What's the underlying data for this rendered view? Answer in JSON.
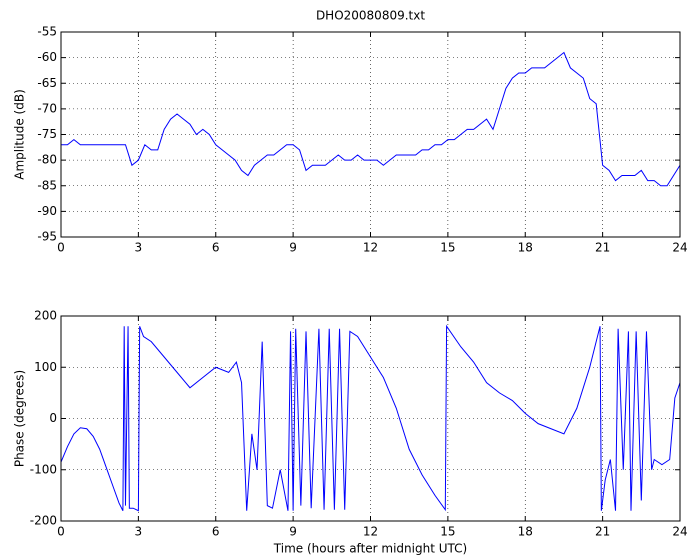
{
  "chart_data": [
    {
      "type": "line",
      "title": "DHO20080809.txt",
      "y_label": "Amplitude (dB)",
      "xlim": [
        0,
        24
      ],
      "xticks": [
        0,
        3,
        6,
        9,
        12,
        15,
        18,
        21,
        24
      ],
      "ylim": [
        -95,
        -55
      ],
      "yticks": [
        -95,
        -90,
        -85,
        -80,
        -75,
        -70,
        -65,
        -60,
        -55
      ],
      "grid": true,
      "series": [
        {
          "color": "#0000ff",
          "x": [
            0,
            0.25,
            0.5,
            0.75,
            1,
            1.25,
            1.5,
            1.75,
            2,
            2.25,
            2.5,
            2.75,
            3,
            3.25,
            3.5,
            3.75,
            4,
            4.25,
            4.5,
            4.75,
            5,
            5.25,
            5.5,
            5.75,
            6,
            6.25,
            6.5,
            6.75,
            7,
            7.25,
            7.5,
            7.75,
            8,
            8.25,
            8.5,
            8.75,
            9,
            9.25,
            9.5,
            9.75,
            10,
            10.25,
            10.5,
            10.75,
            11,
            11.25,
            11.5,
            11.75,
            12,
            12.25,
            12.5,
            12.75,
            13,
            13.25,
            13.5,
            13.75,
            14,
            14.25,
            14.5,
            14.75,
            15,
            15.25,
            15.5,
            15.75,
            16,
            16.25,
            16.5,
            16.75,
            17,
            17.25,
            17.5,
            17.75,
            18,
            18.25,
            18.5,
            18.75,
            19,
            19.25,
            19.5,
            19.75,
            20,
            20.25,
            20.5,
            20.75,
            21,
            21.25,
            21.5,
            21.75,
            22,
            22.25,
            22.5,
            22.75,
            23,
            23.25,
            23.5,
            23.75,
            24
          ],
          "values": [
            -77,
            -77,
            -76,
            -77,
            -77,
            -77,
            -77,
            -77,
            -77,
            -77,
            -77,
            -81,
            -80,
            -77,
            -78,
            -78,
            -74,
            -72,
            -71,
            -72,
            -73,
            -75,
            -74,
            -75,
            -77,
            -78,
            -79,
            -80,
            -82,
            -83,
            -81,
            -80,
            -79,
            -79,
            -78,
            -77,
            -77,
            -78,
            -82,
            -81,
            -81,
            -81,
            -80,
            -79,
            -80,
            -80,
            -79,
            -80,
            -80,
            -80,
            -81,
            -80,
            -79,
            -79,
            -79,
            -79,
            -78,
            -78,
            -77,
            -77,
            -76,
            -76,
            -75,
            -74,
            -74,
            -73,
            -72,
            -74,
            -70,
            -66,
            -64,
            -63,
            -63,
            -62,
            -62,
            -62,
            -61,
            -60,
            -59,
            -62,
            -63,
            -64,
            -68,
            -69,
            -81,
            -82,
            -84,
            -83,
            -83,
            -83,
            -82,
            -84,
            -84,
            -85,
            -85,
            -83,
            -81
          ]
        }
      ]
    },
    {
      "type": "line",
      "x_label": "Time (hours after midnight UTC)",
      "y_label": "Phase (degrees)",
      "xlim": [
        0,
        24
      ],
      "xticks": [
        0,
        3,
        6,
        9,
        12,
        15,
        18,
        21,
        24
      ],
      "ylim": [
        -200,
        200
      ],
      "yticks": [
        -200,
        -100,
        0,
        100,
        200
      ],
      "grid": true,
      "series": [
        {
          "color": "#0000ff",
          "x": [
            0,
            0.25,
            0.5,
            0.75,
            1,
            1.25,
            1.5,
            1.75,
            2,
            2.25,
            2.4,
            2.45,
            2.5,
            2.6,
            2.65,
            2.8,
            3,
            3.05,
            3.2,
            3.5,
            4,
            4.5,
            5,
            5.5,
            6,
            6.5,
            6.8,
            7,
            7.2,
            7.4,
            7.6,
            7.8,
            8,
            8.2,
            8.5,
            8.8,
            8.9,
            9.0,
            9.1,
            9.3,
            9.5,
            9.7,
            10,
            10.2,
            10.4,
            10.6,
            10.8,
            11,
            11.2,
            11.5,
            12,
            12.5,
            13,
            13.5,
            14,
            14.5,
            14.9,
            14.95,
            15.5,
            16,
            16.5,
            17,
            17.5,
            18,
            18.5,
            19,
            19.5,
            20,
            20.5,
            20.9,
            20.95,
            21.1,
            21.3,
            21.5,
            21.6,
            21.8,
            22,
            22.1,
            22.3,
            22.5,
            22.7,
            22.9,
            23,
            23.3,
            23.6,
            23.8,
            24
          ],
          "values": [
            -85,
            -55,
            -30,
            -18,
            -20,
            -35,
            -60,
            -95,
            -130,
            -165,
            -180,
            180,
            -170,
            180,
            -175,
            -175,
            -180,
            180,
            160,
            150,
            120,
            90,
            60,
            80,
            100,
            90,
            110,
            70,
            -180,
            -30,
            -100,
            150,
            -170,
            -175,
            -100,
            -180,
            170,
            -180,
            175,
            -170,
            170,
            -175,
            175,
            -178,
            175,
            -178,
            175,
            -178,
            170,
            160,
            120,
            80,
            20,
            -60,
            -110,
            -150,
            -178,
            180,
            140,
            110,
            70,
            50,
            35,
            10,
            -10,
            -20,
            -30,
            20,
            100,
            180,
            -180,
            -120,
            -80,
            -180,
            175,
            -100,
            170,
            -180,
            170,
            -160,
            170,
            -100,
            -80,
            -90,
            -80,
            40,
            70
          ]
        }
      ]
    }
  ]
}
